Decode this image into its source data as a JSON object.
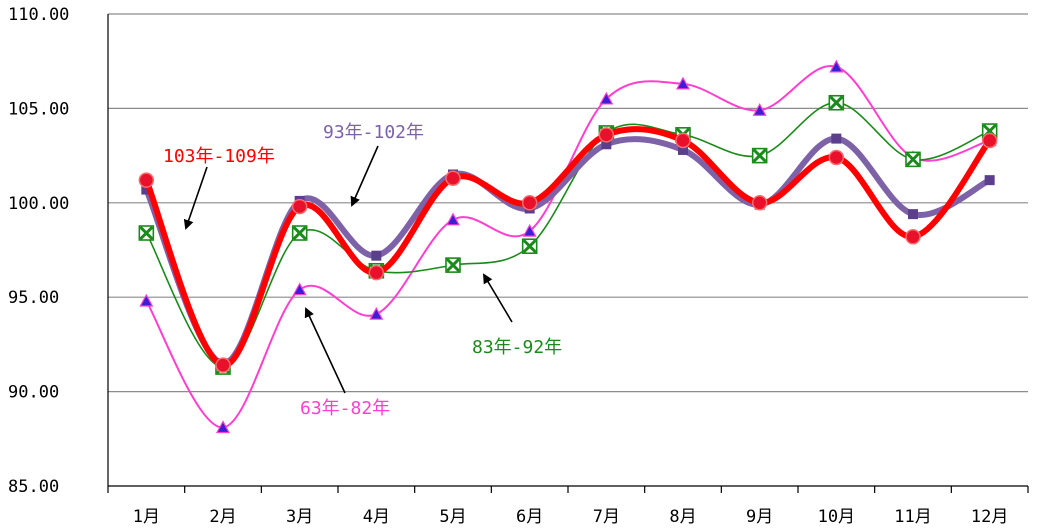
{
  "chart_data": {
    "type": "line",
    "title": "",
    "xlabel": "",
    "ylabel": "",
    "categories": [
      "1月",
      "2月",
      "3月",
      "4月",
      "5月",
      "6月",
      "7月",
      "8月",
      "9月",
      "10月",
      "11月",
      "12月"
    ],
    "ylim": [
      85,
      110
    ],
    "yticks": [
      "85.00",
      "90.00",
      "95.00",
      "100.00",
      "105.00",
      "110.00"
    ],
    "grid": "horizontal",
    "series": [
      {
        "name": "63年-82年",
        "color": "#ff3fcf",
        "marker": "triangle",
        "values": [
          94.8,
          88.1,
          95.4,
          94.1,
          99.1,
          98.5,
          105.5,
          106.3,
          104.9,
          107.2,
          102.4,
          103.3
        ]
      },
      {
        "name": "83年-92年",
        "color": "#1a8a1a",
        "marker": "x-square",
        "values": [
          98.4,
          91.3,
          98.4,
          96.4,
          96.7,
          97.7,
          103.7,
          103.6,
          102.5,
          105.3,
          102.3,
          103.8
        ]
      },
      {
        "name": "93年-102年",
        "color": "#7e62a8",
        "marker": "square",
        "values": [
          100.7,
          91.5,
          100.1,
          97.2,
          101.5,
          99.7,
          103.1,
          102.8,
          99.9,
          103.4,
          99.4,
          101.2
        ]
      },
      {
        "name": "103年-109年",
        "color": "#ff0000",
        "marker": "circle",
        "values": [
          101.2,
          91.4,
          99.8,
          96.3,
          101.3,
          100.0,
          103.6,
          103.3,
          100.0,
          102.4,
          98.2,
          103.3
        ]
      }
    ],
    "annotations": [
      {
        "series": "103年-109年",
        "text": "103年-109年",
        "color": "#ff0000"
      },
      {
        "series": "93年-102年",
        "text": "93年-102年",
        "color": "#7e62a8"
      },
      {
        "series": "83年-92年",
        "text": "83年-92年",
        "color": "#1a8a1a"
      },
      {
        "series": "63年-82年",
        "text": "63年-82年",
        "color": "#ff3fcf"
      }
    ]
  }
}
